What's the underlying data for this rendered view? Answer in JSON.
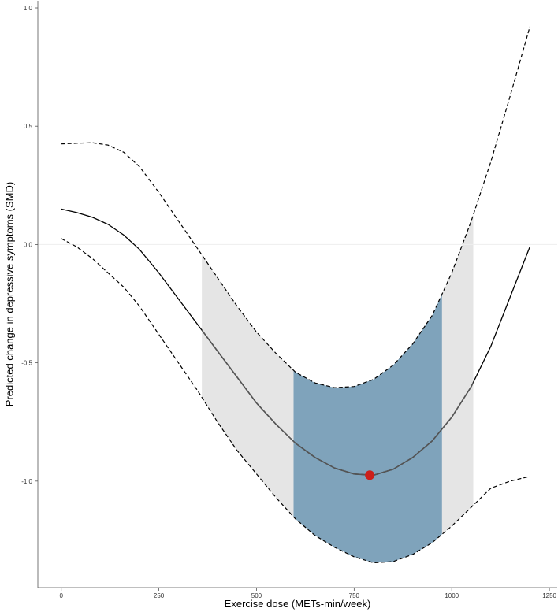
{
  "chart_data": {
    "type": "line",
    "title": "",
    "xlabel": "Exercise dose (METs-min/week)",
    "ylabel": "Predicted change in depressive symptoms (SMD)",
    "xlim": [
      -60,
      1270
    ],
    "ylim": [
      -1.45,
      1.03
    ],
    "x_ticks": [
      "0",
      "250",
      "500",
      "750",
      "1000",
      "1250"
    ],
    "y_ticks": [
      "1.0",
      "0.5",
      "0.0",
      "-0.5",
      "-1.0"
    ],
    "grid": false,
    "reference_line_y": 0,
    "series": [
      {
        "role": "estimate",
        "style": "solid",
        "x": [
          0,
          40,
          80,
          120,
          160,
          200,
          250,
          300,
          350,
          400,
          450,
          500,
          550,
          600,
          650,
          700,
          750,
          800,
          850,
          900,
          950,
          1000,
          1050,
          1100,
          1150,
          1200
        ],
        "y": [
          0.15,
          0.135,
          0.115,
          0.085,
          0.04,
          -0.02,
          -0.12,
          -0.23,
          -0.34,
          -0.45,
          -0.56,
          -0.67,
          -0.76,
          -0.84,
          -0.9,
          -0.945,
          -0.97,
          -0.975,
          -0.95,
          -0.9,
          -0.83,
          -0.73,
          -0.6,
          -0.43,
          -0.22,
          -0.01
        ]
      },
      {
        "role": "upper-confidence-bound",
        "style": "dashed",
        "x": [
          0,
          40,
          80,
          120,
          160,
          200,
          250,
          300,
          350,
          400,
          450,
          500,
          550,
          600,
          650,
          700,
          750,
          800,
          850,
          900,
          950,
          1000,
          1050,
          1100,
          1150,
          1200
        ],
        "y": [
          0.425,
          0.428,
          0.43,
          0.42,
          0.39,
          0.33,
          0.22,
          0.1,
          -0.02,
          -0.14,
          -0.26,
          -0.37,
          -0.46,
          -0.54,
          -0.585,
          -0.605,
          -0.6,
          -0.57,
          -0.51,
          -0.42,
          -0.3,
          -0.12,
          0.1,
          0.35,
          0.63,
          0.92
        ]
      },
      {
        "role": "lower-confidence-bound",
        "style": "dashed",
        "x": [
          0,
          40,
          80,
          120,
          160,
          200,
          250,
          300,
          350,
          400,
          450,
          500,
          550,
          600,
          650,
          700,
          750,
          800,
          850,
          900,
          950,
          1000,
          1050,
          1100,
          1150,
          1200
        ],
        "y": [
          0.025,
          -0.01,
          -0.06,
          -0.12,
          -0.18,
          -0.26,
          -0.38,
          -0.5,
          -0.62,
          -0.75,
          -0.87,
          -0.97,
          -1.07,
          -1.16,
          -1.23,
          -1.28,
          -1.32,
          -1.345,
          -1.34,
          -1.31,
          -1.26,
          -1.19,
          -1.11,
          -1.03,
          -1.0,
          -0.98
        ]
      }
    ],
    "shaded_regions": [
      {
        "role": "significant-dose-range",
        "color": "#e5e5e5",
        "x_from": 360,
        "x_to": 1055
      },
      {
        "role": "clinically-meaningful-range",
        "color": "#7fa3bb",
        "x_from": 595,
        "x_to": 975
      }
    ],
    "highlight_point": {
      "x": 790,
      "y": -0.975,
      "color": "#cc1f1a"
    },
    "colors": {
      "line": "#000000",
      "line_in_region": "#555555",
      "axis": "#555555",
      "reference_line": "#eeeeee"
    }
  }
}
